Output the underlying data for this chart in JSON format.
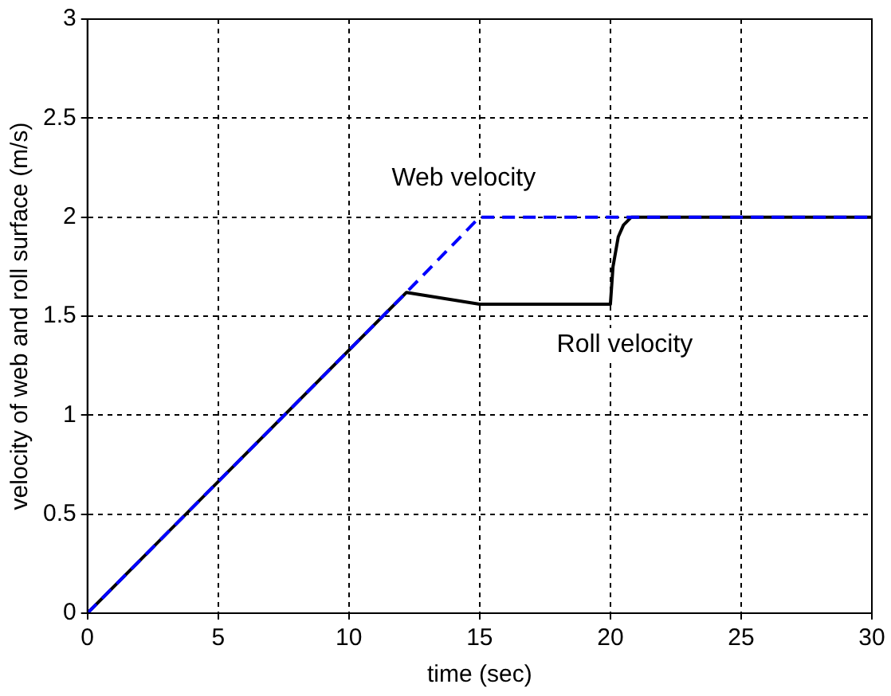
{
  "chart_data": {
    "type": "line",
    "xlabel": "time (sec)",
    "ylabel": "velocity of web and roll surface (m/s)",
    "xlim": [
      0,
      30
    ],
    "ylim": [
      0,
      3
    ],
    "xticks": [
      0,
      5,
      10,
      15,
      20,
      25,
      30
    ],
    "yticks": [
      0,
      0.5,
      1,
      1.5,
      2,
      2.5,
      3
    ],
    "grid": true,
    "legend": false,
    "marker": "none",
    "series": [
      {
        "name": "Web velocity",
        "color": "#0000ff",
        "line_style": "dashed",
        "x": [
          0,
          12.2,
          15,
          30
        ],
        "values": [
          0,
          1.62,
          2,
          2
        ]
      },
      {
        "name": "Roll velocity",
        "color": "#000000",
        "line_style": "solid",
        "x": [
          0,
          12.2,
          15,
          20,
          20.1,
          20.3,
          20.5,
          20.8,
          30
        ],
        "values": [
          0,
          1.62,
          1.56,
          1.56,
          1.75,
          1.9,
          1.96,
          2,
          2
        ]
      }
    ]
  }
}
